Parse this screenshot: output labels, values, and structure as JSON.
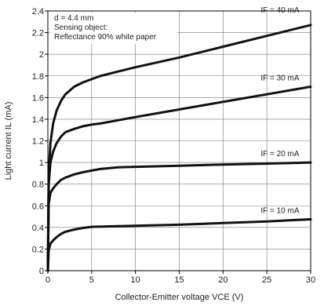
{
  "chart_data": {
    "type": "line",
    "xlabel": "Collector-Emitter voltage VCE (V)",
    "ylabel": "Light current IL (mA)",
    "xlim": [
      0,
      30
    ],
    "ylim": [
      0,
      2.4
    ],
    "xticks": [
      0,
      5,
      10,
      15,
      20,
      25,
      30
    ],
    "yticks": [
      0,
      0.2,
      0.4,
      0.6,
      0.8,
      1,
      1.2,
      1.4,
      1.6,
      1.8,
      2,
      2.2,
      2.4
    ],
    "grid": true,
    "conditions": [
      "d = 4.4 mm",
      "Sensing object:",
      "Reflectance 90% white paper"
    ],
    "series": [
      {
        "name": "IF = 10 mA",
        "x": [
          0,
          0.1,
          0.3,
          0.6,
          1,
          1.5,
          2,
          3,
          4,
          5,
          7,
          10,
          15,
          20,
          25,
          30
        ],
        "y": [
          0,
          0.19,
          0.25,
          0.28,
          0.31,
          0.34,
          0.36,
          0.38,
          0.395,
          0.405,
          0.41,
          0.415,
          0.425,
          0.44,
          0.455,
          0.475
        ]
      },
      {
        "name": "IF = 20 mA",
        "x": [
          0,
          0.1,
          0.3,
          0.6,
          1,
          1.5,
          2,
          3,
          4,
          5,
          6,
          8,
          10,
          15,
          20,
          25,
          30
        ],
        "y": [
          0,
          0.62,
          0.72,
          0.76,
          0.8,
          0.84,
          0.86,
          0.89,
          0.91,
          0.925,
          0.94,
          0.955,
          0.96,
          0.97,
          0.98,
          0.99,
          1.0
        ]
      },
      {
        "name": "IF = 30 mA",
        "x": [
          0,
          0.1,
          0.3,
          0.6,
          1,
          1.5,
          2,
          3,
          4,
          5,
          6,
          8,
          10,
          15,
          20,
          25,
          30
        ],
        "y": [
          0,
          0.8,
          1.0,
          1.1,
          1.18,
          1.24,
          1.28,
          1.31,
          1.335,
          1.35,
          1.36,
          1.39,
          1.42,
          1.49,
          1.56,
          1.63,
          1.7
        ]
      },
      {
        "name": "IF = 40 mA",
        "x": [
          0,
          0.1,
          0.3,
          0.6,
          1,
          1.5,
          2,
          3,
          4,
          5,
          6,
          8,
          10,
          15,
          20,
          25,
          30
        ],
        "y": [
          0,
          0.9,
          1.18,
          1.36,
          1.48,
          1.57,
          1.63,
          1.7,
          1.74,
          1.77,
          1.8,
          1.84,
          1.88,
          1.97,
          2.07,
          2.17,
          2.27
        ]
      }
    ],
    "series_label_text": [
      "IF = 10 mA",
      "IF = 20 mA",
      "IF = 30 mA",
      "IF = 40 mA"
    ]
  }
}
